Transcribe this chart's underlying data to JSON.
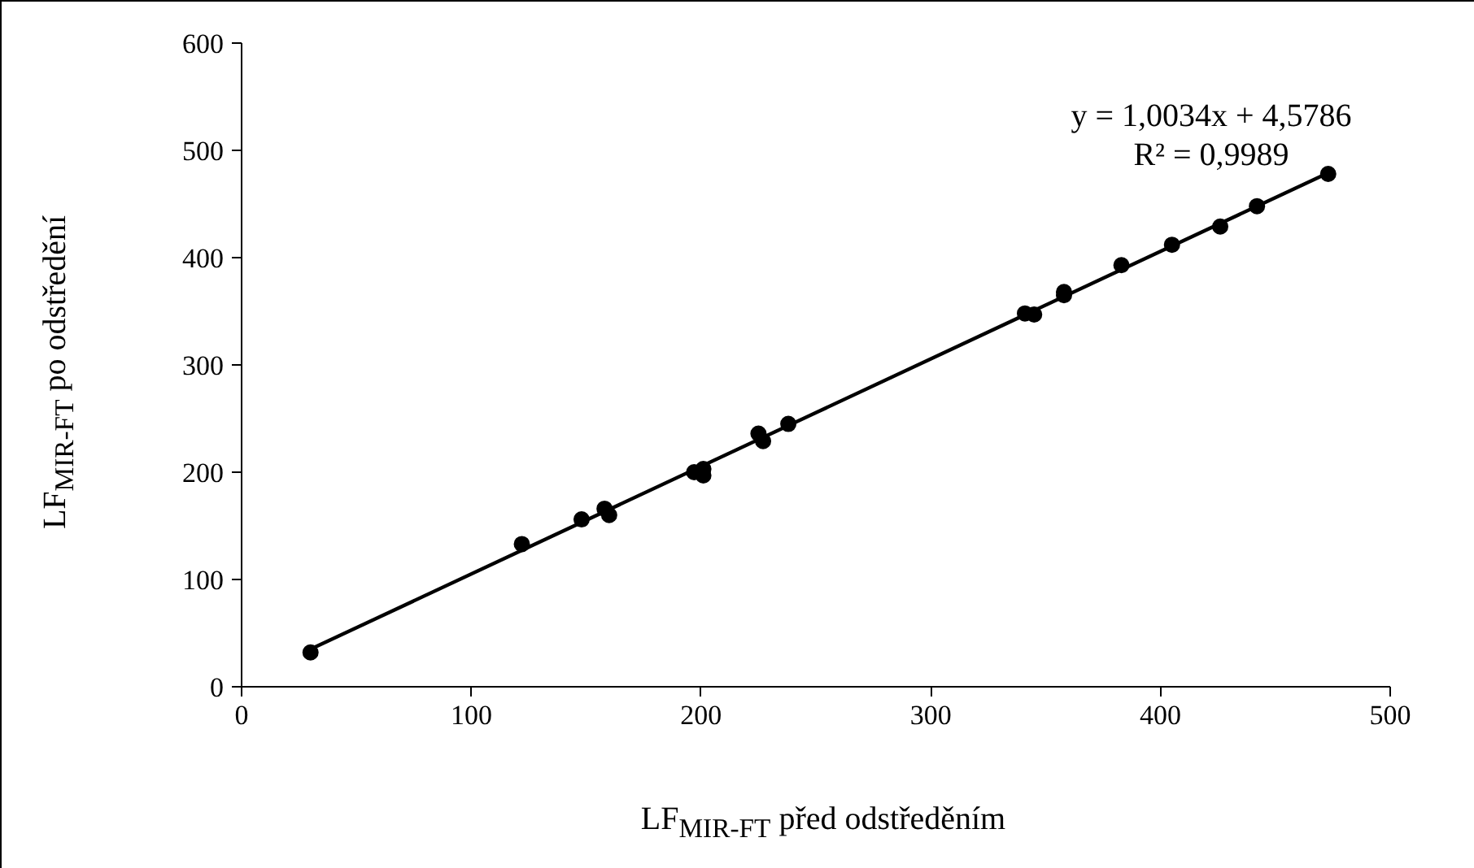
{
  "chart_data": {
    "type": "scatter",
    "xlabel": "LF$_{MIR-FT}$ před odstředěním",
    "ylabel": "LF$_{MIR-FT}$ po odstředění",
    "xlim": [
      0,
      500
    ],
    "xticks": [
      0,
      100,
      200,
      300,
      400,
      500
    ],
    "ylim": [
      0,
      600
    ],
    "yticks": [
      0,
      100,
      200,
      300,
      400,
      500,
      600
    ],
    "grid": false,
    "marker": "circle",
    "annotations": [
      "y = 1,0034x + 4,5786",
      "R² = 0,9989"
    ],
    "series": [
      {
        "color": "#000000",
        "x": [
          30,
          122,
          148,
          158,
          160,
          197,
          201,
          201,
          225,
          227,
          238,
          341,
          345,
          358,
          358,
          383,
          405,
          426,
          442,
          473
        ],
        "values": [
          32,
          133,
          156,
          166,
          160,
          200,
          197,
          203,
          236,
          229,
          245,
          348,
          347,
          365,
          368,
          393,
          412,
          429,
          448,
          478
        ]
      },
      {
        "type": "line",
        "color": "#000000",
        "marker": "none",
        "line_style": "solid",
        "x": [
          30,
          473
        ],
        "values": [
          35,
          479
        ]
      }
    ]
  }
}
